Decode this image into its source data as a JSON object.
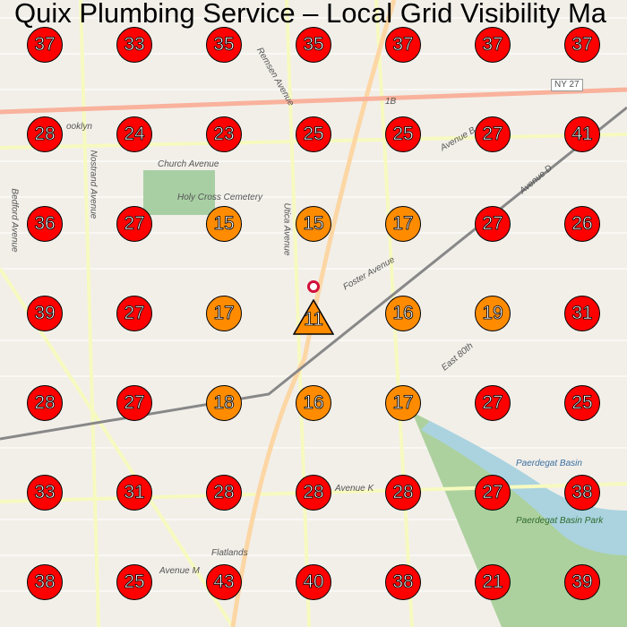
{
  "title": "Quix Plumbing Service – Local Grid Visibility Ma",
  "colors": {
    "high_rank": "#ff0000",
    "mid_rank": "#ff8c00",
    "business_pin": "#d0103a"
  },
  "business_icon": "location-pin-icon",
  "center_marker_shape": "triangle",
  "map_labels": [
    "ooklyn",
    "Church Avenue",
    "Holy Cross Cemetery",
    "Utica Avenue",
    "Foster Avenue",
    "Avenue K",
    "Flatlands",
    "Avenue M",
    "Paerdegat Basin",
    "Paerdegat Basin Park",
    "NY 27",
    "1B",
    "Avenue D",
    "Avenue B",
    "East 80th",
    "Nostrand Avenue",
    "Bedford Avenue",
    "Remsen Avenue"
  ],
  "grid": [
    [
      37,
      33,
      35,
      35,
      37,
      37,
      37
    ],
    [
      28,
      24,
      23,
      25,
      25,
      27,
      41
    ],
    [
      36,
      27,
      15,
      15,
      17,
      27,
      26
    ],
    [
      39,
      27,
      17,
      11,
      16,
      19,
      31
    ],
    [
      28,
      27,
      18,
      16,
      17,
      27,
      25
    ],
    [
      33,
      31,
      28,
      28,
      28,
      27,
      38
    ],
    [
      38,
      25,
      43,
      40,
      38,
      21,
      39
    ]
  ]
}
